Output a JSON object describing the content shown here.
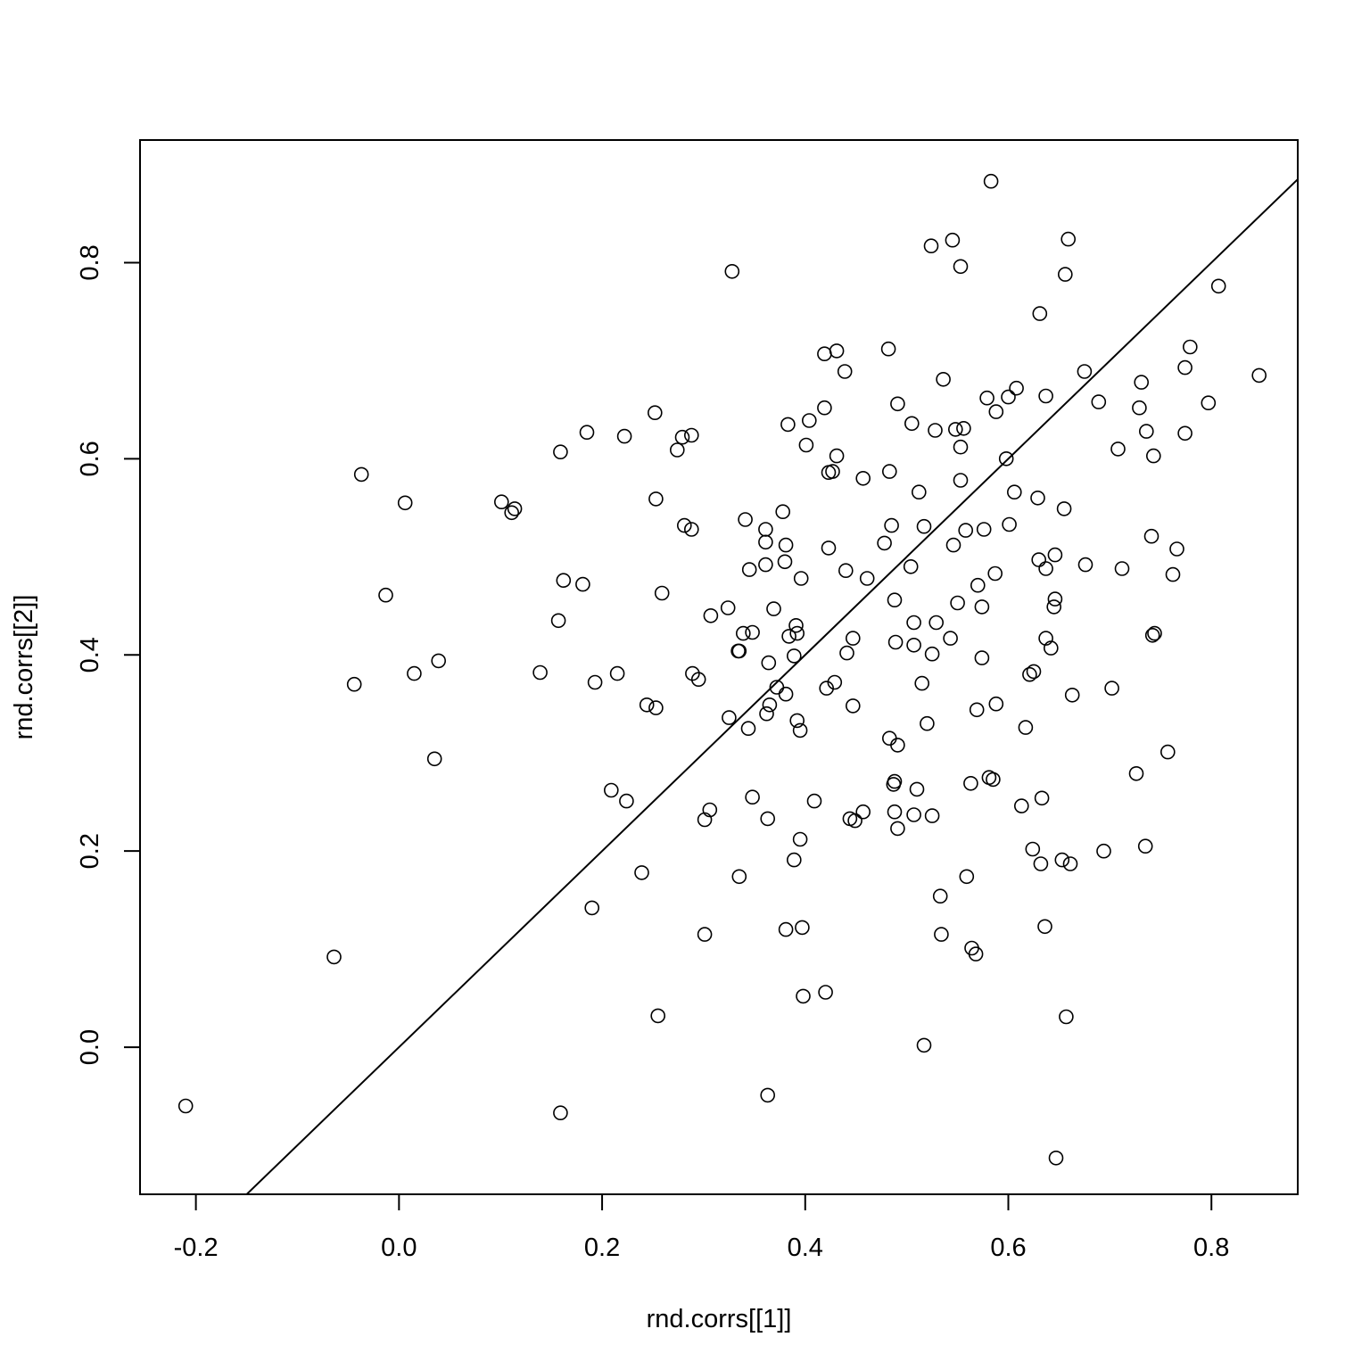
{
  "chart_data": {
    "type": "scatter",
    "title": "",
    "xlabel": "rnd.corrs[[1]]",
    "ylabel": "rnd.corrs[[2]]",
    "xlim": [
      -0.255,
      0.885
    ],
    "ylim": [
      -0.15,
      0.925
    ],
    "x_ticks": [
      -0.2,
      0.0,
      0.2,
      0.4,
      0.6,
      0.8
    ],
    "x_tick_labels": [
      "-0.2",
      "0.0",
      "0.2",
      "0.4",
      "0.6",
      "0.8"
    ],
    "y_ticks": [
      0.0,
      0.2,
      0.4,
      0.6,
      0.8
    ],
    "y_tick_labels": [
      "0.0",
      "0.2",
      "0.4",
      "0.6",
      "0.8"
    ],
    "grid": false,
    "reference_line": {
      "type": "y=x",
      "intercept": 0,
      "slope": 1
    },
    "points": [
      [
        -0.21,
        -0.06
      ],
      [
        -0.064,
        0.092
      ],
      [
        -0.044,
        0.37
      ],
      [
        -0.037,
        0.584
      ],
      [
        -0.013,
        0.461
      ],
      [
        0.006,
        0.555
      ],
      [
        0.015,
        0.381
      ],
      [
        0.035,
        0.294
      ],
      [
        0.039,
        0.394
      ],
      [
        0.101,
        0.556
      ],
      [
        0.111,
        0.545
      ],
      [
        0.114,
        0.549
      ],
      [
        0.139,
        0.382
      ],
      [
        0.157,
        0.435
      ],
      [
        0.159,
        0.607
      ],
      [
        0.159,
        -0.067
      ],
      [
        0.162,
        0.476
      ],
      [
        0.181,
        0.472
      ],
      [
        0.185,
        0.627
      ],
      [
        0.19,
        0.142
      ],
      [
        0.193,
        0.372
      ],
      [
        0.209,
        0.262
      ],
      [
        0.215,
        0.381
      ],
      [
        0.222,
        0.623
      ],
      [
        0.224,
        0.251
      ],
      [
        0.239,
        0.178
      ],
      [
        0.244,
        0.349
      ],
      [
        0.252,
        0.647
      ],
      [
        0.253,
        0.559
      ],
      [
        0.253,
        0.346
      ],
      [
        0.255,
        0.032
      ],
      [
        0.259,
        0.463
      ],
      [
        0.274,
        0.609
      ],
      [
        0.279,
        0.622
      ],
      [
        0.281,
        0.532
      ],
      [
        0.288,
        0.624
      ],
      [
        0.288,
        0.528
      ],
      [
        0.289,
        0.381
      ],
      [
        0.295,
        0.375
      ],
      [
        0.301,
        0.232
      ],
      [
        0.301,
        0.115
      ],
      [
        0.306,
        0.242
      ],
      [
        0.307,
        0.44
      ],
      [
        0.324,
        0.448
      ],
      [
        0.325,
        0.336
      ],
      [
        0.328,
        0.791
      ],
      [
        0.334,
        0.404
      ],
      [
        0.335,
        0.404
      ],
      [
        0.335,
        0.174
      ],
      [
        0.339,
        0.422
      ],
      [
        0.341,
        0.538
      ],
      [
        0.344,
        0.325
      ],
      [
        0.345,
        0.487
      ],
      [
        0.348,
        0.423
      ],
      [
        0.348,
        0.255
      ],
      [
        0.361,
        0.528
      ],
      [
        0.361,
        0.515
      ],
      [
        0.361,
        0.492
      ],
      [
        0.362,
        0.34
      ],
      [
        0.363,
        0.233
      ],
      [
        0.363,
        -0.049
      ],
      [
        0.364,
        0.392
      ],
      [
        0.365,
        0.349
      ],
      [
        0.369,
        0.447
      ],
      [
        0.372,
        0.367
      ],
      [
        0.378,
        0.546
      ],
      [
        0.38,
        0.495
      ],
      [
        0.381,
        0.512
      ],
      [
        0.381,
        0.36
      ],
      [
        0.381,
        0.12
      ],
      [
        0.383,
        0.635
      ],
      [
        0.384,
        0.419
      ],
      [
        0.389,
        0.399
      ],
      [
        0.389,
        0.191
      ],
      [
        0.391,
        0.43
      ],
      [
        0.392,
        0.422
      ],
      [
        0.392,
        0.333
      ],
      [
        0.395,
        0.323
      ],
      [
        0.395,
        0.212
      ],
      [
        0.396,
        0.478
      ],
      [
        0.397,
        0.122
      ],
      [
        0.398,
        0.052
      ],
      [
        0.401,
        0.614
      ],
      [
        0.404,
        0.639
      ],
      [
        0.409,
        0.251
      ],
      [
        0.419,
        0.707
      ],
      [
        0.419,
        0.652
      ],
      [
        0.42,
        0.056
      ],
      [
        0.421,
        0.366
      ],
      [
        0.423,
        0.586
      ],
      [
        0.423,
        0.509
      ],
      [
        0.427,
        0.587
      ],
      [
        0.429,
        0.372
      ],
      [
        0.431,
        0.71
      ],
      [
        0.431,
        0.603
      ],
      [
        0.439,
        0.689
      ],
      [
        0.44,
        0.486
      ],
      [
        0.441,
        0.402
      ],
      [
        0.444,
        0.233
      ],
      [
        0.447,
        0.417
      ],
      [
        0.447,
        0.348
      ],
      [
        0.449,
        0.231
      ],
      [
        0.457,
        0.58
      ],
      [
        0.457,
        0.24
      ],
      [
        0.461,
        0.478
      ],
      [
        0.478,
        0.514
      ],
      [
        0.482,
        0.712
      ],
      [
        0.483,
        0.587
      ],
      [
        0.483,
        0.315
      ],
      [
        0.485,
        0.532
      ],
      [
        0.487,
        0.268
      ],
      [
        0.488,
        0.456
      ],
      [
        0.488,
        0.271
      ],
      [
        0.488,
        0.24
      ],
      [
        0.489,
        0.413
      ],
      [
        0.491,
        0.656
      ],
      [
        0.491,
        0.308
      ],
      [
        0.491,
        0.223
      ],
      [
        0.504,
        0.49
      ],
      [
        0.505,
        0.636
      ],
      [
        0.507,
        0.433
      ],
      [
        0.507,
        0.41
      ],
      [
        0.507,
        0.237
      ],
      [
        0.51,
        0.263
      ],
      [
        0.512,
        0.566
      ],
      [
        0.515,
        0.371
      ],
      [
        0.517,
        0.531
      ],
      [
        0.517,
        0.002
      ],
      [
        0.52,
        0.33
      ],
      [
        0.524,
        0.817
      ],
      [
        0.525,
        0.401
      ],
      [
        0.525,
        0.236
      ],
      [
        0.528,
        0.629
      ],
      [
        0.529,
        0.433
      ],
      [
        0.533,
        0.154
      ],
      [
        0.534,
        0.115
      ],
      [
        0.536,
        0.681
      ],
      [
        0.543,
        0.417
      ],
      [
        0.545,
        0.823
      ],
      [
        0.546,
        0.512
      ],
      [
        0.548,
        0.63
      ],
      [
        0.55,
        0.453
      ],
      [
        0.553,
        0.796
      ],
      [
        0.553,
        0.612
      ],
      [
        0.553,
        0.578
      ],
      [
        0.556,
        0.631
      ],
      [
        0.558,
        0.527
      ],
      [
        0.559,
        0.174
      ],
      [
        0.563,
        0.269
      ],
      [
        0.564,
        0.101
      ],
      [
        0.568,
        0.095
      ],
      [
        0.569,
        0.344
      ],
      [
        0.57,
        0.471
      ],
      [
        0.574,
        0.449
      ],
      [
        0.574,
        0.397
      ],
      [
        0.576,
        0.528
      ],
      [
        0.579,
        0.662
      ],
      [
        0.581,
        0.275
      ],
      [
        0.583,
        0.883
      ],
      [
        0.585,
        0.273
      ],
      [
        0.587,
        0.483
      ],
      [
        0.588,
        0.648
      ],
      [
        0.588,
        0.35
      ],
      [
        0.598,
        0.6
      ],
      [
        0.6,
        0.663
      ],
      [
        0.601,
        0.533
      ],
      [
        0.606,
        0.566
      ],
      [
        0.608,
        0.672
      ],
      [
        0.613,
        0.246
      ],
      [
        0.617,
        0.326
      ],
      [
        0.621,
        0.38
      ],
      [
        0.624,
        0.202
      ],
      [
        0.625,
        0.383
      ],
      [
        0.629,
        0.56
      ],
      [
        0.63,
        0.497
      ],
      [
        0.631,
        0.748
      ],
      [
        0.632,
        0.187
      ],
      [
        0.633,
        0.254
      ],
      [
        0.636,
        0.123
      ],
      [
        0.637,
        0.664
      ],
      [
        0.637,
        0.417
      ],
      [
        0.637,
        0.488
      ],
      [
        0.642,
        0.407
      ],
      [
        0.645,
        0.449
      ],
      [
        0.646,
        0.457
      ],
      [
        0.646,
        0.502
      ],
      [
        0.647,
        -0.113
      ],
      [
        0.653,
        0.191
      ],
      [
        0.655,
        0.549
      ],
      [
        0.656,
        0.788
      ],
      [
        0.657,
        0.031
      ],
      [
        0.659,
        0.824
      ],
      [
        0.661,
        0.187
      ],
      [
        0.663,
        0.359
      ],
      [
        0.675,
        0.689
      ],
      [
        0.676,
        0.492
      ],
      [
        0.689,
        0.658
      ],
      [
        0.694,
        0.2
      ],
      [
        0.702,
        0.366
      ],
      [
        0.708,
        0.61
      ],
      [
        0.712,
        0.488
      ],
      [
        0.726,
        0.279
      ],
      [
        0.729,
        0.652
      ],
      [
        0.731,
        0.678
      ],
      [
        0.735,
        0.205
      ],
      [
        0.736,
        0.628
      ],
      [
        0.741,
        0.521
      ],
      [
        0.742,
        0.42
      ],
      [
        0.743,
        0.603
      ],
      [
        0.744,
        0.422
      ],
      [
        0.757,
        0.301
      ],
      [
        0.762,
        0.482
      ],
      [
        0.766,
        0.508
      ],
      [
        0.774,
        0.693
      ],
      [
        0.774,
        0.626
      ],
      [
        0.779,
        0.714
      ],
      [
        0.797,
        0.657
      ],
      [
        0.807,
        0.776
      ],
      [
        0.847,
        0.685
      ]
    ]
  }
}
